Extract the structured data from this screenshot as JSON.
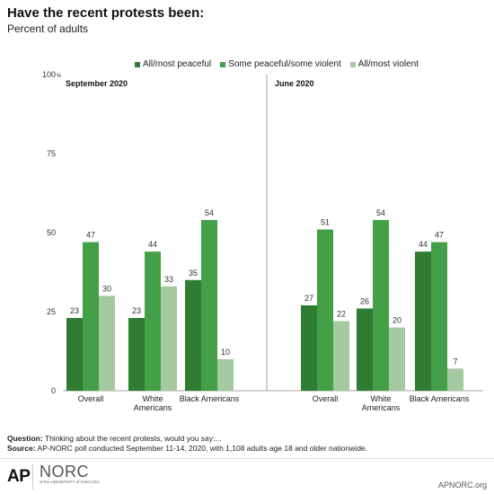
{
  "header": {
    "title": "Have the recent protests been:",
    "subtitle": "Percent of adults"
  },
  "footer": {
    "question_label": "Question:",
    "question_text": " Thinking about the recent protests, would you say:...",
    "source_label": "Source:",
    "source_text": " AP-NORC poll conducted September 11-14, 2020, with 1,108 adults age 18 and older nationwide.",
    "ap_logo": "AP",
    "norc_logo": "NORC",
    "norc_sub": "at the UNIVERSITY of CHICAGO",
    "site": "APNORC.org"
  },
  "colors": {
    "series": [
      "#2e7d32",
      "#43a047",
      "#a5c9a1"
    ],
    "axis": "#888888",
    "divider": "#888888",
    "grid": "#dddddd"
  },
  "chart_data": {
    "type": "bar",
    "ylim": [
      0,
      100
    ],
    "yticks": [
      0,
      25,
      50,
      75,
      100
    ],
    "ytick_labels": [
      "0",
      "25",
      "50",
      "75",
      "100"
    ],
    "ytick_unit": "%",
    "legend_position": "top",
    "series_names": [
      "All/most peaceful",
      "Some peaceful/some violent",
      "All/most violent"
    ],
    "panels": [
      {
        "label": "September 2020",
        "categories": [
          "Overall",
          "White\nAmericans",
          "Black Americans"
        ],
        "series": [
          {
            "name": "All/most peaceful",
            "values": [
              23,
              23,
              35
            ]
          },
          {
            "name": "Some peaceful/some violent",
            "values": [
              47,
              44,
              54
            ]
          },
          {
            "name": "All/most violent",
            "values": [
              30,
              33,
              10
            ]
          }
        ]
      },
      {
        "label": "June 2020",
        "categories": [
          "Overall",
          "White\nAmericans",
          "Black Americans"
        ],
        "series": [
          {
            "name": "All/most peaceful",
            "values": [
              27,
              26,
              44
            ]
          },
          {
            "name": "Some peaceful/some violent",
            "values": [
              51,
              54,
              47
            ]
          },
          {
            "name": "All/most violent",
            "values": [
              22,
              20,
              7
            ]
          }
        ]
      }
    ]
  }
}
